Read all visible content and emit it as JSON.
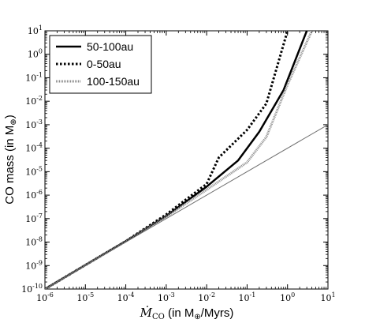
{
  "chart_data": {
    "type": "line",
    "xlabel_symbol": "Ṁ",
    "xlabel_subscript": "CO",
    "xlabel_rest": " (in M",
    "xlabel_unit_end": "/Myrs)",
    "ylabel_main": "CO mass (in M",
    "ylabel_end": ")",
    "earth_symbol": "⊕",
    "xscale": "log",
    "yscale": "log",
    "xlim": [
      1e-06,
      10
    ],
    "ylim": [
      1e-10,
      10
    ],
    "x_tick_exponents": [
      -6,
      -5,
      -4,
      -3,
      -2,
      -1,
      0,
      1
    ],
    "y_tick_exponents": [
      -10,
      -9,
      -8,
      -7,
      -6,
      -5,
      -4,
      -3,
      -2,
      -1,
      0,
      1
    ],
    "tick_base": "10",
    "legend_position": "top-left",
    "series": [
      {
        "name": "50-100au",
        "style": "solid",
        "color": "#000000",
        "points": [
          [
            1e-06,
            1e-10
          ],
          [
            0.0001,
            1.1e-08
          ],
          [
            0.001,
            1.3e-07
          ],
          [
            0.01,
            2.3e-06
          ],
          [
            0.06,
            3e-05
          ],
          [
            0.2,
            0.0005
          ],
          [
            0.8,
            0.03
          ],
          [
            3,
            10
          ]
        ]
      },
      {
        "name": "0-50au",
        "style": "dotted",
        "color": "#000000",
        "points": [
          [
            1e-06,
            1e-10
          ],
          [
            0.0001,
            1.1e-08
          ],
          [
            0.001,
            1.5e-07
          ],
          [
            0.01,
            3e-06
          ],
          [
            0.02,
            4e-05
          ],
          [
            0.1,
            0.0006
          ],
          [
            0.3,
            0.008
          ],
          [
            1.0,
            10
          ]
        ]
      },
      {
        "name": "100-150au",
        "style": "hatched",
        "color": "#8a8a8a",
        "points": [
          [
            1e-06,
            1e-10
          ],
          [
            0.0001,
            1.1e-08
          ],
          [
            0.001,
            1.2e-07
          ],
          [
            0.01,
            1.7e-06
          ],
          [
            0.1,
            2.5e-05
          ],
          [
            0.3,
            0.0003
          ],
          [
            1.0,
            0.05
          ],
          [
            4,
            10
          ]
        ]
      },
      {
        "name": "",
        "style": "thin",
        "color": "#707070",
        "in_legend": false,
        "points": [
          [
            1e-06,
            1e-10
          ],
          [
            10,
            0.001
          ]
        ]
      }
    ]
  }
}
